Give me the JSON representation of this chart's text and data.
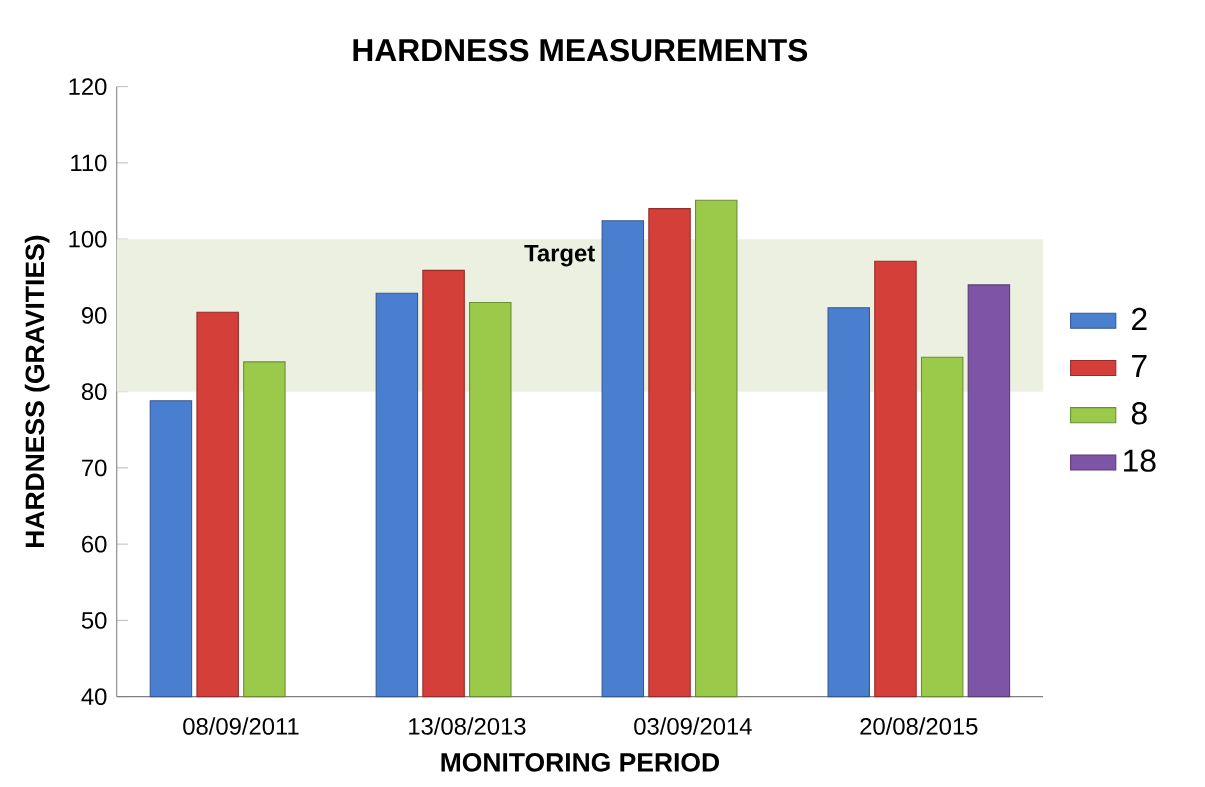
{
  "chart_data": {
    "type": "bar",
    "title": "HARDNESS MEASUREMENTS",
    "xlabel": "MONITORING PERIOD",
    "ylabel": "HARDNESS (GRAVITIES)",
    "categories": [
      "08/09/2011",
      "13/08/2013",
      "03/09/2014",
      "20/08/2015"
    ],
    "series": [
      {
        "name": "2",
        "color": "#4a7fd0",
        "values": [
          78.8,
          92.9,
          102.4,
          91.0
        ]
      },
      {
        "name": "7",
        "color": "#d43f3a",
        "values": [
          90.4,
          95.9,
          104.0,
          97.1
        ]
      },
      {
        "name": "8",
        "color": "#9bc94a",
        "values": [
          83.9,
          91.7,
          105.1,
          84.5
        ]
      },
      {
        "name": "18",
        "color": "#7e55a6",
        "values": [
          null,
          null,
          null,
          94.0
        ]
      }
    ],
    "ylim": [
      40,
      120
    ],
    "yticks": [
      40,
      50,
      60,
      70,
      80,
      90,
      100,
      110,
      120
    ],
    "bands": [
      {
        "axis": "y",
        "from": 80,
        "to": 100,
        "label": "Target",
        "color": "#ecf0e0"
      }
    ],
    "grid": false,
    "legend": "right"
  }
}
